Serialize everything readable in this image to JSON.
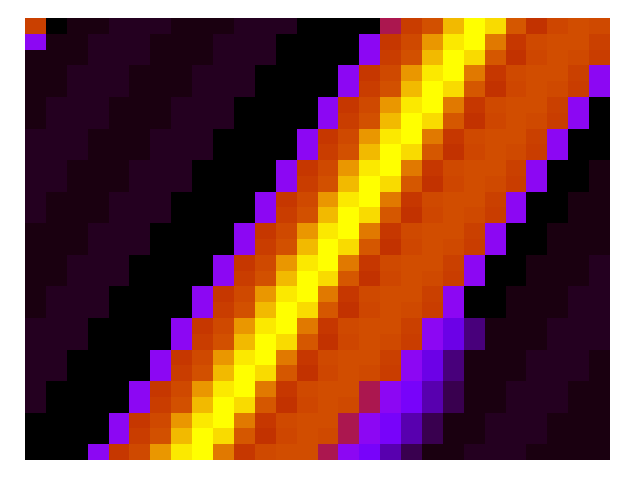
{
  "chart_data": {
    "type": "heatmap",
    "color": "gnuplot",
    "color_range": [
      0,
      100
    ],
    "xlim": [
      0,
      28
    ],
    "ylim": [
      0,
      28
    ],
    "tick_labels": false,
    "cells": [
      [
        63,
        0,
        1,
        1,
        2,
        2,
        2,
        1,
        1,
        1,
        2,
        2,
        2,
        0,
        0,
        0,
        0,
        45,
        62,
        68,
        90,
        100,
        95,
        70,
        58,
        65,
        67,
        66
      ],
      [
        30,
        1,
        1,
        2,
        2,
        2,
        1,
        1,
        1,
        2,
        2,
        2,
        0,
        0,
        0,
        0,
        30,
        60,
        66,
        84,
        97,
        100,
        78,
        60,
        66,
        67,
        67,
        63
      ],
      [
        1,
        1,
        1,
        2,
        2,
        2,
        1,
        1,
        1,
        2,
        2,
        2,
        0,
        0,
        0,
        0,
        30,
        62,
        68,
        90,
        100,
        95,
        70,
        58,
        65,
        67,
        66,
        62
      ],
      [
        1,
        1,
        2,
        2,
        2,
        1,
        1,
        1,
        2,
        2,
        2,
        0,
        0,
        0,
        0,
        30,
        60,
        66,
        84,
        97,
        100,
        78,
        60,
        66,
        67,
        67,
        63,
        30
      ],
      [
        1,
        1,
        2,
        2,
        2,
        1,
        1,
        1,
        2,
        2,
        2,
        0,
        0,
        0,
        0,
        30,
        62,
        68,
        90,
        100,
        95,
        70,
        58,
        65,
        67,
        66,
        62,
        30
      ],
      [
        1,
        2,
        2,
        2,
        1,
        1,
        1,
        2,
        2,
        2,
        0,
        0,
        0,
        0,
        30,
        60,
        66,
        84,
        97,
        100,
        78,
        60,
        66,
        67,
        67,
        63,
        30,
        0
      ],
      [
        1,
        2,
        2,
        2,
        1,
        1,
        1,
        2,
        2,
        2,
        0,
        0,
        0,
        0,
        30,
        62,
        68,
        90,
        100,
        95,
        70,
        58,
        65,
        67,
        66,
        62,
        30,
        0
      ],
      [
        2,
        2,
        2,
        1,
        1,
        1,
        2,
        2,
        2,
        0,
        0,
        0,
        0,
        30,
        60,
        66,
        84,
        97,
        100,
        78,
        60,
        66,
        67,
        67,
        63,
        30,
        0,
        0
      ],
      [
        2,
        2,
        2,
        1,
        1,
        1,
        2,
        2,
        2,
        0,
        0,
        0,
        0,
        30,
        62,
        68,
        90,
        100,
        95,
        70,
        58,
        65,
        67,
        66,
        62,
        30,
        0,
        0
      ],
      [
        2,
        2,
        1,
        1,
        1,
        2,
        2,
        2,
        0,
        0,
        0,
        0,
        30,
        60,
        66,
        84,
        97,
        100,
        78,
        60,
        66,
        67,
        67,
        63,
        30,
        0,
        0,
        1
      ],
      [
        2,
        2,
        1,
        1,
        1,
        2,
        2,
        2,
        0,
        0,
        0,
        0,
        30,
        62,
        68,
        90,
        100,
        95,
        70,
        58,
        65,
        67,
        66,
        62,
        30,
        0,
        0,
        1
      ],
      [
        2,
        1,
        1,
        1,
        2,
        2,
        2,
        0,
        0,
        0,
        0,
        30,
        60,
        66,
        84,
        97,
        100,
        78,
        60,
        66,
        67,
        67,
        63,
        30,
        0,
        0,
        1,
        1
      ],
      [
        2,
        1,
        1,
        1,
        2,
        2,
        2,
        0,
        0,
        0,
        0,
        30,
        62,
        68,
        90,
        100,
        95,
        70,
        58,
        65,
        67,
        66,
        62,
        30,
        0,
        0,
        1,
        1
      ],
      [
        1,
        1,
        1,
        2,
        2,
        2,
        0,
        0,
        0,
        0,
        30,
        60,
        66,
        84,
        97,
        100,
        78,
        60,
        66,
        67,
        67,
        63,
        30,
        0,
        0,
        1,
        1,
        1
      ],
      [
        1,
        1,
        1,
        2,
        2,
        2,
        0,
        0,
        0,
        0,
        30,
        62,
        68,
        90,
        100,
        95,
        70,
        58,
        65,
        67,
        66,
        62,
        30,
        0,
        0,
        1,
        1,
        1
      ],
      [
        1,
        1,
        2,
        2,
        2,
        0,
        0,
        0,
        0,
        30,
        60,
        66,
        84,
        97,
        100,
        78,
        60,
        66,
        67,
        67,
        63,
        30,
        0,
        0,
        1,
        1,
        1,
        2
      ],
      [
        1,
        1,
        2,
        2,
        2,
        0,
        0,
        0,
        0,
        30,
        62,
        68,
        90,
        100,
        95,
        70,
        58,
        65,
        67,
        66,
        62,
        30,
        0,
        0,
        1,
        1,
        1,
        2
      ],
      [
        1,
        2,
        2,
        2,
        0,
        0,
        0,
        0,
        30,
        60,
        66,
        84,
        97,
        100,
        78,
        60,
        66,
        67,
        67,
        63,
        30,
        0,
        0,
        1,
        1,
        1,
        2,
        2
      ],
      [
        1,
        2,
        2,
        2,
        0,
        0,
        0,
        0,
        30,
        62,
        68,
        90,
        100,
        95,
        70,
        58,
        65,
        67,
        66,
        62,
        30,
        0,
        0,
        1,
        1,
        1,
        2,
        2
      ],
      [
        2,
        2,
        2,
        0,
        0,
        0,
        0,
        30,
        60,
        66,
        84,
        97,
        100,
        78,
        60,
        66,
        67,
        67,
        63,
        30,
        18,
        8,
        1,
        1,
        1,
        2,
        2,
        2
      ],
      [
        2,
        2,
        2,
        0,
        0,
        0,
        0,
        30,
        62,
        68,
        90,
        100,
        95,
        70,
        58,
        65,
        67,
        66,
        62,
        30,
        18,
        8,
        1,
        1,
        1,
        2,
        2,
        2
      ],
      [
        2,
        2,
        0,
        0,
        0,
        0,
        30,
        60,
        66,
        84,
        97,
        100,
        78,
        60,
        66,
        67,
        67,
        63,
        30,
        18,
        8,
        1,
        1,
        1,
        2,
        2,
        2,
        1
      ],
      [
        2,
        2,
        0,
        0,
        0,
        0,
        30,
        62,
        68,
        90,
        100,
        95,
        70,
        58,
        65,
        67,
        66,
        62,
        30,
        18,
        8,
        1,
        1,
        1,
        2,
        2,
        2,
        1
      ],
      [
        2,
        0,
        0,
        0,
        0,
        30,
        60,
        66,
        84,
        97,
        100,
        78,
        60,
        66,
        67,
        67,
        45,
        30,
        22,
        12,
        5,
        1,
        1,
        2,
        2,
        2,
        1,
        1
      ],
      [
        2,
        0,
        0,
        0,
        0,
        30,
        62,
        68,
        90,
        100,
        95,
        70,
        58,
        65,
        67,
        66,
        45,
        30,
        22,
        12,
        5,
        1,
        1,
        2,
        2,
        2,
        1,
        1
      ],
      [
        0,
        0,
        0,
        0,
        30,
        60,
        66,
        84,
        97,
        100,
        78,
        60,
        66,
        67,
        67,
        45,
        30,
        22,
        12,
        5,
        1,
        1,
        2,
        2,
        2,
        1,
        1,
        1
      ],
      [
        0,
        0,
        0,
        0,
        30,
        62,
        68,
        90,
        100,
        95,
        70,
        58,
        65,
        67,
        66,
        45,
        30,
        22,
        12,
        5,
        1,
        1,
        2,
        2,
        2,
        1,
        1,
        1
      ],
      [
        0,
        0,
        0,
        30,
        60,
        66,
        84,
        97,
        100,
        78,
        60,
        66,
        67,
        67,
        45,
        30,
        22,
        12,
        5,
        1,
        1,
        2,
        2,
        2,
        1,
        1,
        1,
        1
      ]
    ]
  }
}
